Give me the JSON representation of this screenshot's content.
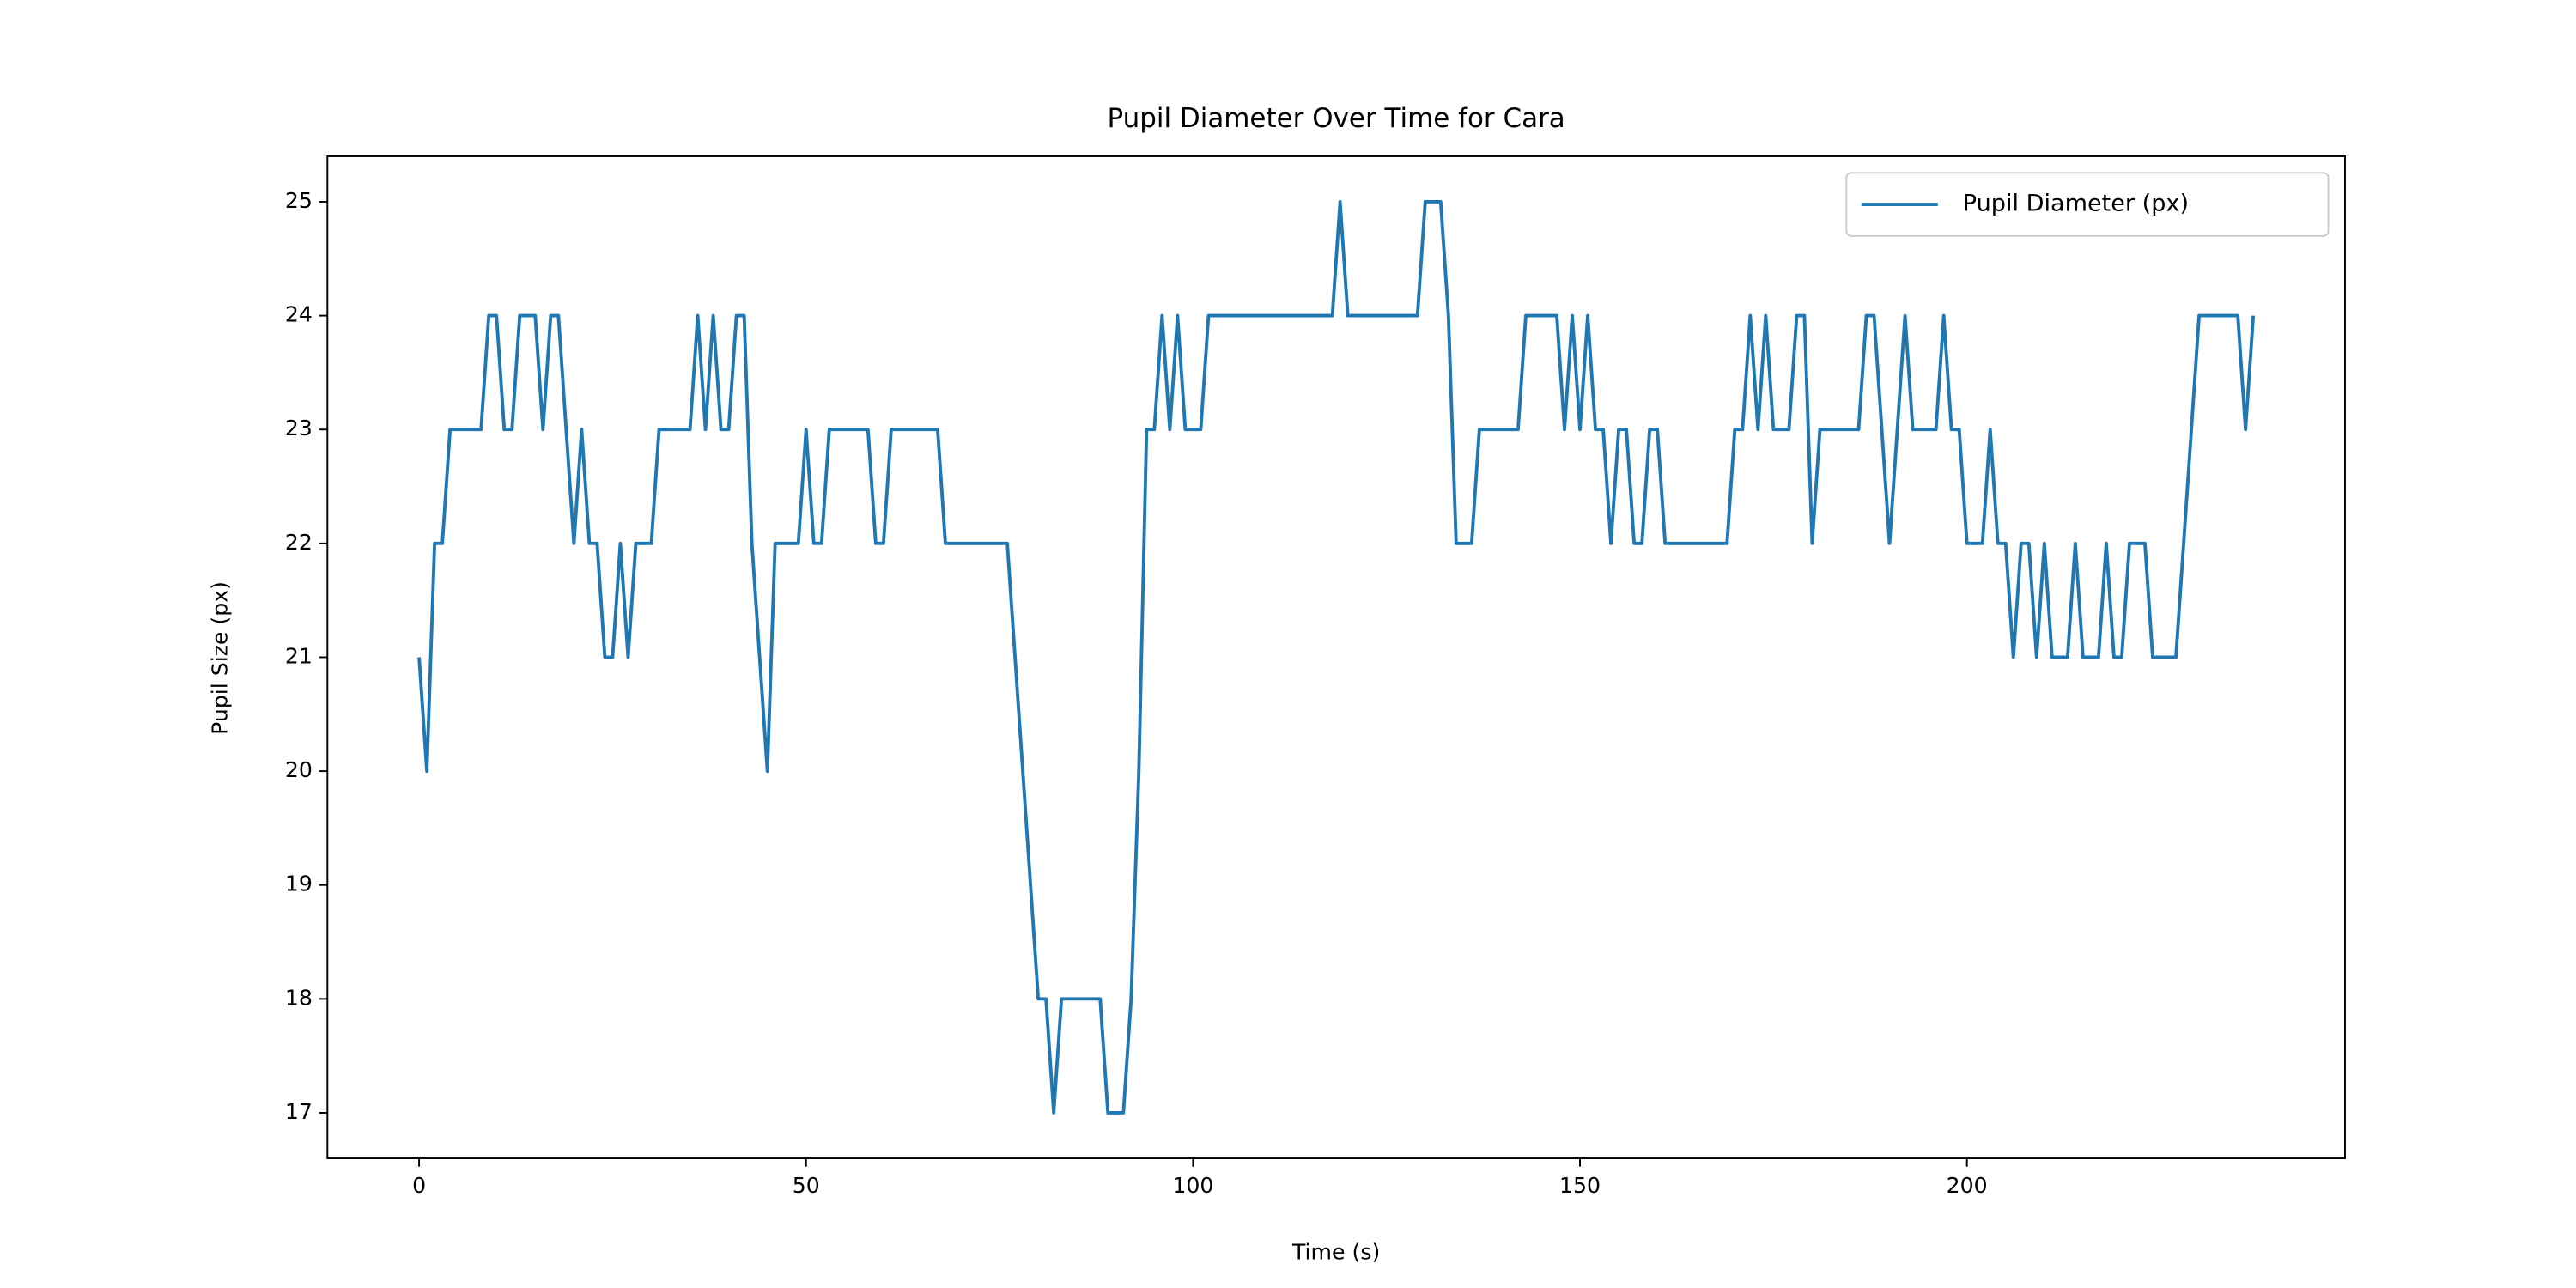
{
  "chart_data": {
    "type": "line",
    "title": "Pupil Diameter Over Time for Cara",
    "x_label": "Time (s)",
    "y_label": "Pupil Size (px)",
    "x": [
      0,
      1,
      2,
      3,
      4,
      5,
      6,
      7,
      8,
      9,
      10,
      11,
      12,
      13,
      14,
      15,
      16,
      17,
      18,
      19,
      20,
      21,
      22,
      23,
      24,
      25,
      26,
      27,
      28,
      29,
      30,
      31,
      32,
      33,
      34,
      35,
      36,
      37,
      38,
      39,
      40,
      41,
      42,
      43,
      44,
      45,
      46,
      47,
      48,
      49,
      50,
      51,
      52,
      53,
      54,
      55,
      56,
      57,
      58,
      59,
      60,
      61,
      62,
      63,
      64,
      65,
      66,
      67,
      68,
      69,
      70,
      71,
      72,
      73,
      74,
      75,
      76,
      77,
      78,
      79,
      80,
      81,
      82,
      83,
      84,
      85,
      86,
      87,
      88,
      89,
      90,
      91,
      92,
      93,
      94,
      95,
      96,
      97,
      98,
      99,
      100,
      101,
      102,
      103,
      104,
      105,
      106,
      107,
      108,
      109,
      110,
      111,
      112,
      113,
      114,
      115,
      116,
      117,
      118,
      119,
      120,
      121,
      122,
      123,
      124,
      125,
      126,
      127,
      128,
      129,
      130,
      131,
      132,
      133,
      134,
      135,
      136,
      137,
      138,
      139,
      140,
      141,
      142,
      143,
      144,
      145,
      146,
      147,
      148,
      149,
      150,
      151,
      152,
      153,
      154,
      155,
      156,
      157,
      158,
      159,
      160,
      161,
      162,
      163,
      164,
      165,
      166,
      167,
      168,
      169,
      170,
      171,
      172,
      173,
      174,
      175,
      176,
      177,
      178,
      179,
      180,
      181,
      182,
      183,
      184,
      185,
      186,
      187,
      188,
      189,
      190,
      191,
      192,
      193,
      194,
      195,
      196,
      197,
      198,
      199,
      200,
      201,
      202,
      203,
      204,
      205,
      206,
      207,
      208,
      209,
      210,
      211,
      212,
      213,
      214,
      215,
      216,
      217,
      218,
      219,
      220,
      221,
      222,
      223,
      224,
      225,
      226,
      227,
      228,
      229,
      230,
      231,
      232,
      233,
      234,
      235,
      236,
      237
    ],
    "series": [
      {
        "name": "Pupil Diameter (px)",
        "color": "#1f77b4",
        "values": [
          21,
          20,
          22,
          22,
          23,
          23,
          23,
          23,
          23,
          24,
          24,
          23,
          23,
          24,
          24,
          24,
          23,
          24,
          24,
          23,
          22,
          23,
          22,
          22,
          21,
          21,
          22,
          21,
          22,
          22,
          22,
          23,
          23,
          23,
          23,
          23,
          24,
          23,
          24,
          23,
          23,
          24,
          24,
          22,
          21,
          20,
          22,
          22,
          22,
          22,
          23,
          22,
          22,
          23,
          23,
          23,
          23,
          23,
          23,
          22,
          22,
          23,
          23,
          23,
          23,
          23,
          23,
          23,
          22,
          22,
          22,
          22,
          22,
          22,
          22,
          22,
          22,
          21,
          20,
          19,
          18,
          18,
          17,
          18,
          18,
          18,
          18,
          18,
          18,
          17,
          17,
          17,
          18,
          20,
          23,
          23,
          24,
          23,
          24,
          23,
          23,
          23,
          24,
          24,
          24,
          24,
          24,
          24,
          24,
          24,
          24,
          24,
          24,
          24,
          24,
          24,
          24,
          24,
          24,
          25,
          24,
          24,
          24,
          24,
          24,
          24,
          24,
          24,
          24,
          24,
          25,
          25,
          25,
          24,
          22,
          22,
          22,
          23,
          23,
          23,
          23,
          23,
          23,
          24,
          24,
          24,
          24,
          24,
          23,
          24,
          23,
          24,
          23,
          23,
          22,
          23,
          23,
          22,
          22,
          23,
          23,
          22,
          22,
          22,
          22,
          22,
          22,
          22,
          22,
          22,
          23,
          23,
          24,
          23,
          24,
          23,
          23,
          23,
          24,
          24,
          22,
          23,
          23,
          23,
          23,
          23,
          23,
          24,
          24,
          23,
          22,
          23,
          24,
          23,
          23,
          23,
          23,
          24,
          23,
          23,
          22,
          22,
          22,
          23,
          22,
          22,
          21,
          22,
          22,
          21,
          22,
          21,
          21,
          21,
          22,
          21,
          21,
          21,
          22,
          21,
          21,
          22,
          22,
          22,
          21,
          21,
          21,
          21,
          22,
          23,
          24,
          24,
          24,
          24,
          24,
          24,
          23,
          24
        ]
      }
    ],
    "xlim": [
      -11.85,
      248.85
    ],
    "ylim": [
      16.6,
      25.4
    ],
    "xticks": [
      0,
      50,
      100,
      150,
      200
    ],
    "yticks": [
      17,
      18,
      19,
      20,
      21,
      22,
      23,
      24,
      25
    ],
    "legend": "upper right"
  }
}
